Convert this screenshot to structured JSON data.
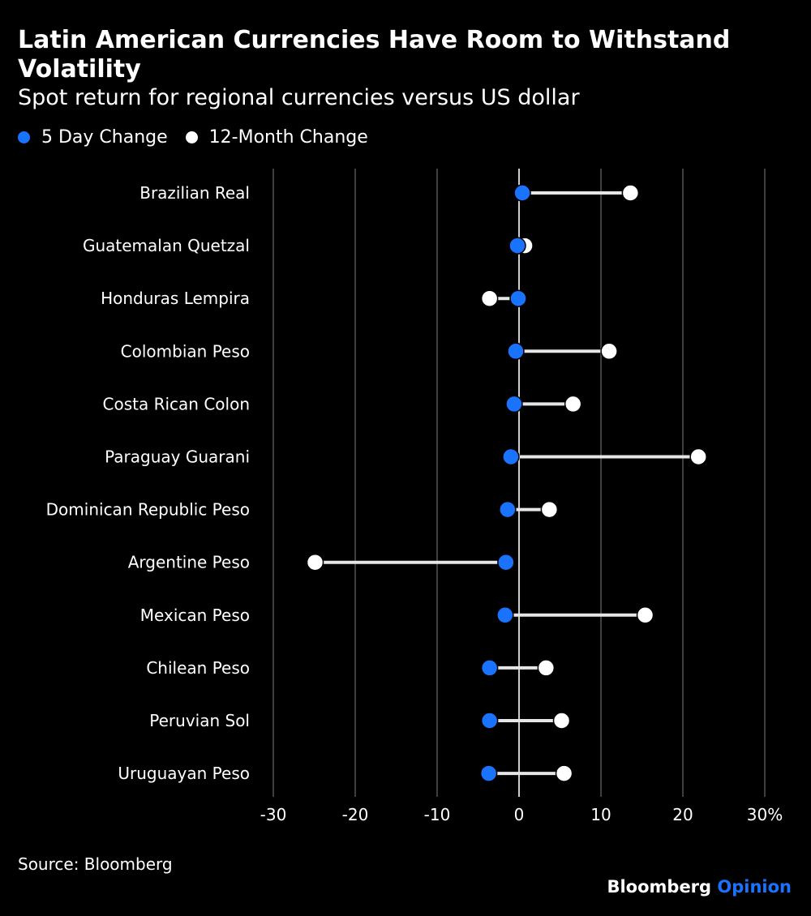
{
  "header": {
    "title": "Latin American Currencies Have Room to Withstand Volatility",
    "subtitle": "Spot return for regional currencies versus US dollar"
  },
  "legend": [
    {
      "label": "5 Day Change",
      "color": "#1a73ff"
    },
    {
      "label": "12-Month Change",
      "color": "#ffffff"
    }
  ],
  "footer": {
    "source": "Source: Bloomberg",
    "brand_main": "Bloomberg",
    "brand_accent": "Opinion"
  },
  "colors": {
    "background": "#000000",
    "five_day": "#1a73ff",
    "twelve_month": "#ffffff",
    "connector": "#e6e6e6",
    "gridline": "#5a5a5a",
    "zero_line": "#ffffff"
  },
  "chart_data": {
    "type": "dumbbell",
    "title": "Latin American Currencies Have Room to Withstand Volatility",
    "subtitle": "Spot return for regional currencies versus US dollar",
    "xlim": [
      -30,
      30
    ],
    "xticks": [
      -30,
      -20,
      -10,
      0,
      10,
      20,
      30
    ],
    "xtick_labels": [
      "-30",
      "-20",
      "-10",
      "0",
      "10",
      "20",
      "30%"
    ],
    "grid": true,
    "legend_position": "top-left",
    "categories": [
      "Brazilian Real",
      "Guatemalan Quetzal",
      "Honduras Lempira",
      "Colombian Peso",
      "Costa Rican Colon",
      "Paraguay Guarani",
      "Dominican Republic Peso",
      "Argentine Peso",
      "Mexican Peso",
      "Chilean Peso",
      "Peruvian Sol",
      "Uruguayan Peso"
    ],
    "series": [
      {
        "name": "5 Day Change",
        "values": [
          0.4,
          -0.2,
          -0.1,
          -0.4,
          -0.6,
          -1.0,
          -1.4,
          -1.6,
          -1.7,
          -3.6,
          -3.6,
          -3.7
        ]
      },
      {
        "name": "12-Month Change",
        "values": [
          13.6,
          0.7,
          -3.6,
          11.0,
          6.6,
          21.9,
          3.7,
          -24.9,
          15.4,
          3.3,
          5.2,
          5.5
        ]
      }
    ]
  }
}
